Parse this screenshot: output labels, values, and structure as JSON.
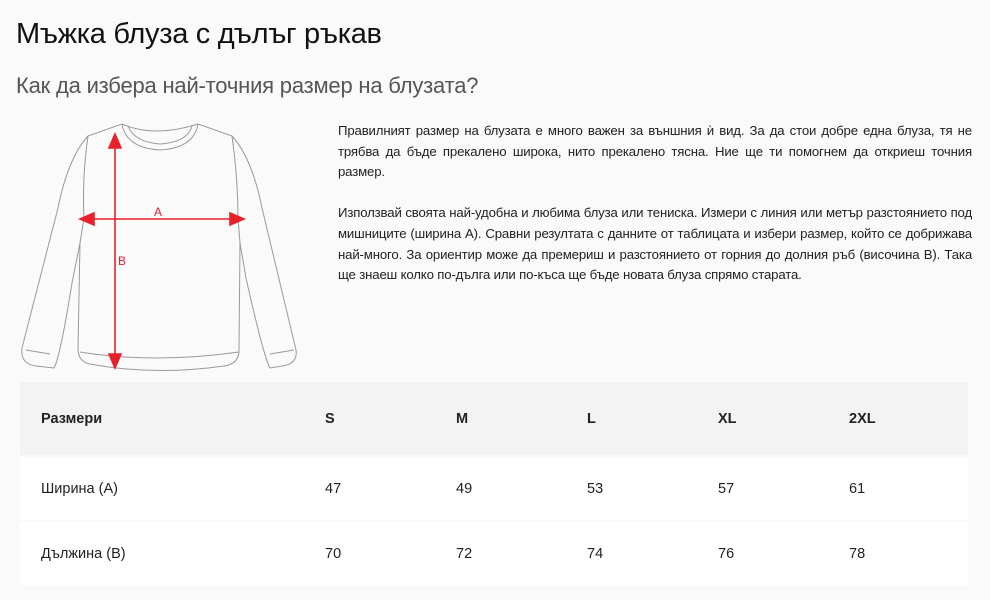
{
  "title": "Мъжка блуза с дълъг ръкав",
  "subtitle": "Как да избера най-точния размер на блузата?",
  "illustration": {
    "label_a": "A",
    "label_b": "B",
    "arrow_color": "#e8202a"
  },
  "description": [
    "Правилният размер на блузата е много важен за външния ѝ вид. За да стои добре една блуза, тя не трябва да бъде прекалено широка, нито прекалено тясна. Ние ще ти помогнем да откриеш точния размер.",
    "Използвай своята най-удобна и любима блуза или тениска. Измери с линия или метър разстоянието под мишниците (ширина А). Сравни резултата с данните от таблицата и избери размер, който се добрижава най-много. За ориентир може да премериш и разстоянието от горния до долния ръб (височина В). Така ще знаеш колко по-дълга или по-къса ще бъде новата блуза спрямо старата."
  ],
  "table": {
    "headers": [
      "Размери",
      "S",
      "M",
      "L",
      "XL",
      "2XL"
    ],
    "rows": [
      [
        "Ширина (А)",
        "47",
        "49",
        "53",
        "57",
        "61"
      ],
      [
        "Дължина (В)",
        "70",
        "72",
        "74",
        "76",
        "78"
      ]
    ]
  }
}
